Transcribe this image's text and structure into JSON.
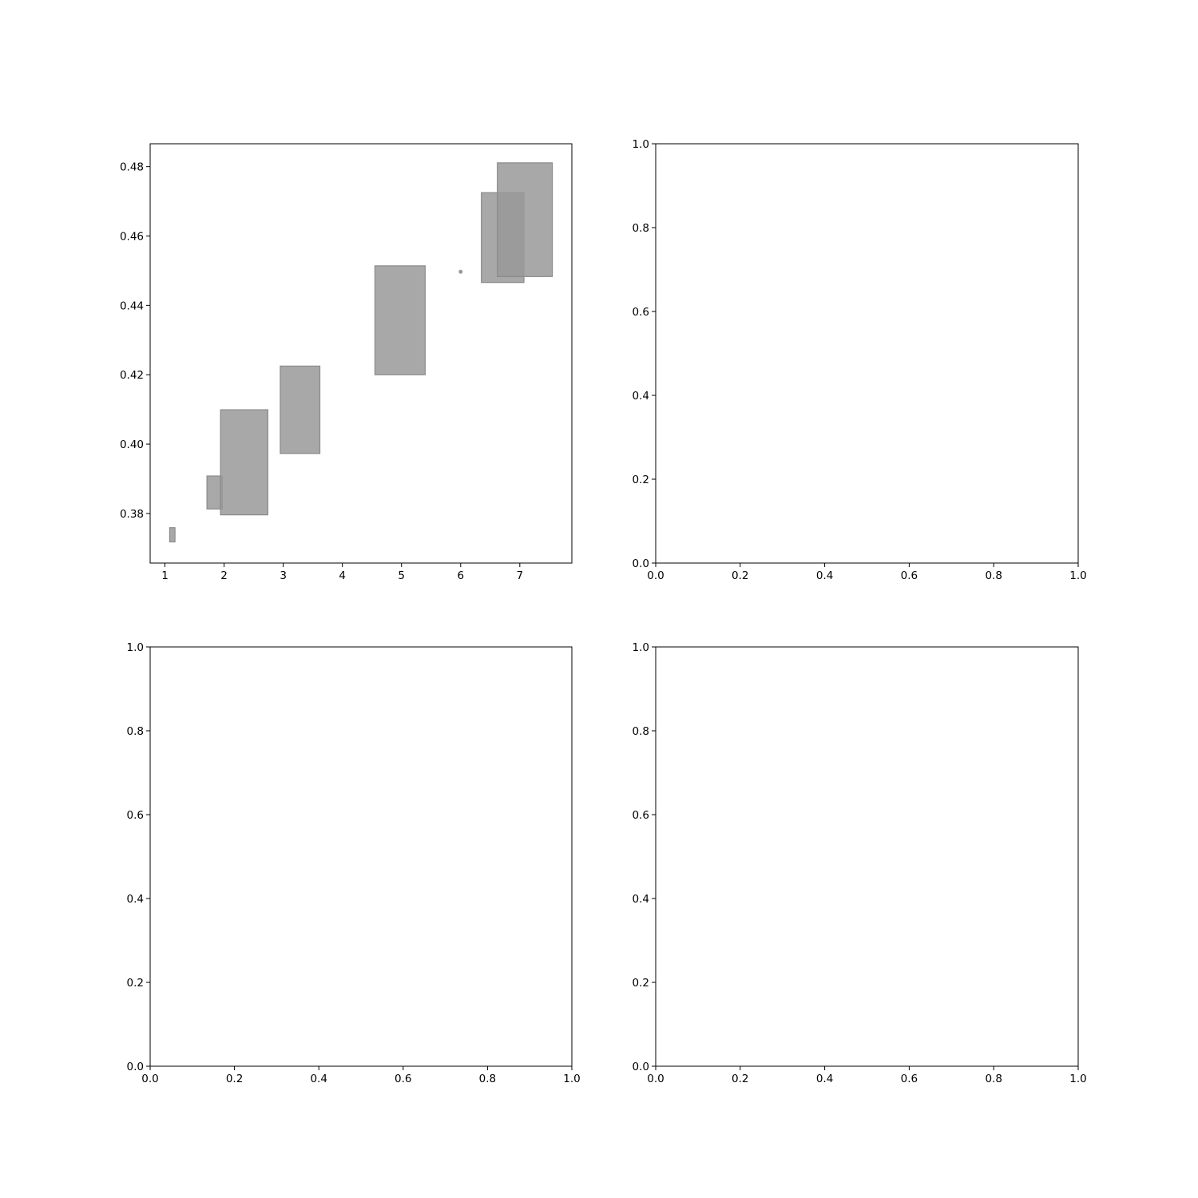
{
  "chart_data": [
    {
      "type": "rectangles",
      "panel": "top-left",
      "grid": false,
      "xlim": [
        0.75,
        7.88
      ],
      "ylim": [
        0.3657,
        0.4866
      ],
      "xticks": [
        1,
        2,
        3,
        4,
        5,
        6,
        7
      ],
      "yticks": [
        0.38,
        0.4,
        0.42,
        0.44,
        0.46,
        0.48
      ],
      "xtick_labels": [
        "1",
        "2",
        "3",
        "4",
        "5",
        "6",
        "7"
      ],
      "ytick_labels": [
        "0.38",
        "0.40",
        "0.42",
        "0.44",
        "0.46",
        "0.48"
      ],
      "colors": {
        "fill": "#999999",
        "fill_opacity": 0.85,
        "edge": "#8a8a8a"
      },
      "rects": [
        {
          "x0": 1.08,
          "x1": 1.17,
          "y0": 0.3718,
          "y1": 0.3759
        },
        {
          "x0": 1.71,
          "x1": 1.97,
          "y0": 0.3813,
          "y1": 0.3908
        },
        {
          "x0": 1.94,
          "x1": 2.74,
          "y0": 0.3796,
          "y1": 0.4099
        },
        {
          "x0": 2.95,
          "x1": 3.62,
          "y0": 0.3973,
          "y1": 0.4225
        },
        {
          "x0": 4.55,
          "x1": 5.4,
          "y0": 0.42,
          "y1": 0.4514
        },
        {
          "x0": 6.35,
          "x1": 7.07,
          "y0": 0.4466,
          "y1": 0.4725
        },
        {
          "x0": 6.62,
          "x1": 7.55,
          "y0": 0.4483,
          "y1": 0.4811
        }
      ],
      "points": [
        {
          "x": 6.0,
          "y": 0.4497
        }
      ]
    },
    {
      "type": "empty",
      "panel": "top-right",
      "xlim": [
        0,
        1
      ],
      "ylim": [
        0,
        1
      ],
      "xticks": [
        0,
        0.2,
        0.4,
        0.6,
        0.8,
        1.0
      ],
      "yticks": [
        0,
        0.2,
        0.4,
        0.6,
        0.8,
        1.0
      ],
      "xtick_labels": [
        "0.0",
        "0.2",
        "0.4",
        "0.6",
        "0.8",
        "1.0"
      ],
      "ytick_labels": [
        "0.0",
        "0.2",
        "0.4",
        "0.6",
        "0.8",
        "1.0"
      ]
    },
    {
      "type": "empty",
      "panel": "bottom-left",
      "xlim": [
        0,
        1
      ],
      "ylim": [
        0,
        1
      ],
      "xticks": [
        0,
        0.2,
        0.4,
        0.6,
        0.8,
        1.0
      ],
      "yticks": [
        0,
        0.2,
        0.4,
        0.6,
        0.8,
        1.0
      ],
      "xtick_labels": [
        "0.0",
        "0.2",
        "0.4",
        "0.6",
        "0.8",
        "1.0"
      ],
      "ytick_labels": [
        "0.0",
        "0.2",
        "0.4",
        "0.6",
        "0.8",
        "1.0"
      ]
    },
    {
      "type": "empty",
      "panel": "bottom-right",
      "xlim": [
        0,
        1
      ],
      "ylim": [
        0,
        1
      ],
      "xticks": [
        0,
        0.2,
        0.4,
        0.6,
        0.8,
        1.0
      ],
      "yticks": [
        0,
        0.2,
        0.4,
        0.6,
        0.8,
        1.0
      ],
      "xtick_labels": [
        "0.0",
        "0.2",
        "0.4",
        "0.6",
        "0.8",
        "1.0"
      ],
      "ytick_labels": [
        "0.0",
        "0.2",
        "0.4",
        "0.6",
        "0.8",
        "1.0"
      ]
    }
  ]
}
